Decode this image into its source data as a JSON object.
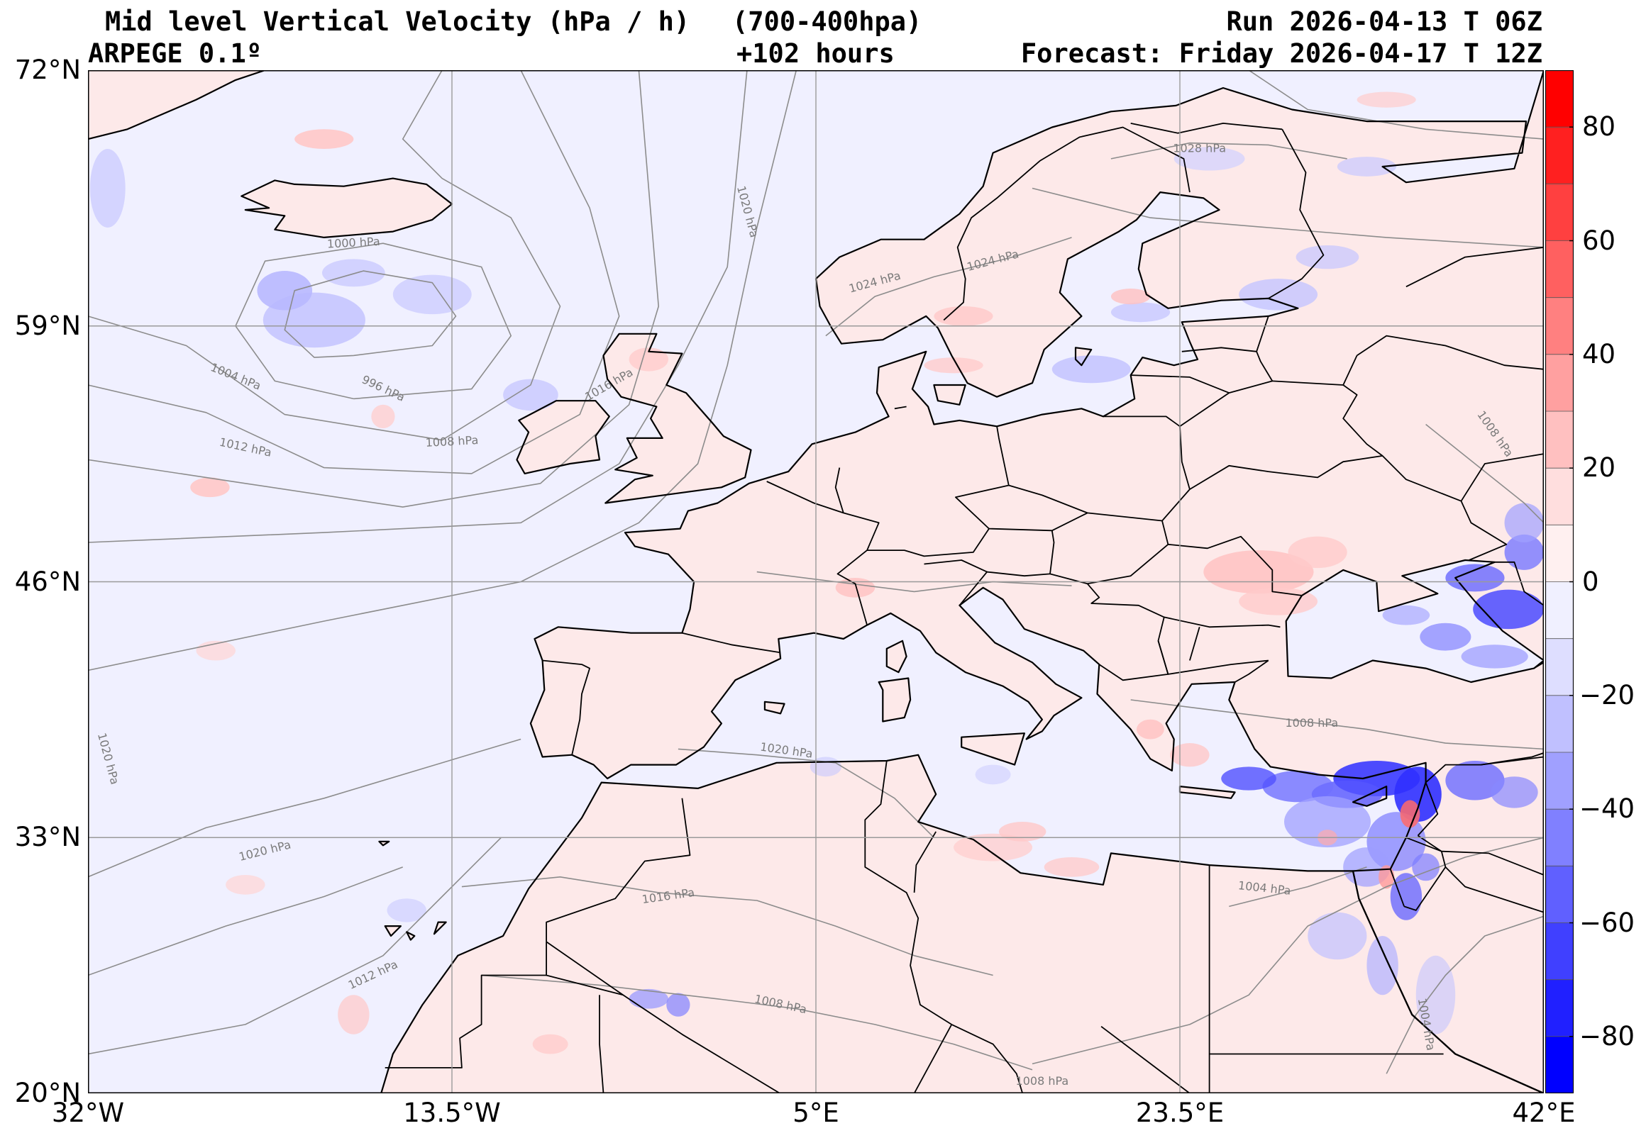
{
  "header": {
    "title": "Mid level Vertical Velocity (hPa / h)",
    "layer": "(700-400hpa)",
    "model": "ARPEGE 0.1º",
    "lead_time": "+102 hours",
    "run": "Run 2026-04-13 T 06Z",
    "forecast": "Forecast: Friday 2026-04-17 T 12Z"
  },
  "map": {
    "extent": {
      "lon_min": -32,
      "lon_max": 42,
      "lat_min": 20,
      "lat_max": 72
    },
    "lon_ticks": [
      {
        "value": -32,
        "label": "32°W"
      },
      {
        "value": -13.5,
        "label": "13.5°W"
      },
      {
        "value": 5,
        "label": "5°E"
      },
      {
        "value": 23.5,
        "label": "23.5°E"
      },
      {
        "value": 42,
        "label": "42°E"
      }
    ],
    "lat_ticks": [
      {
        "value": 72,
        "label": "72°N"
      },
      {
        "value": 59,
        "label": "59°N"
      },
      {
        "value": 46,
        "label": "46°N"
      },
      {
        "value": 33,
        "label": "33°N"
      },
      {
        "value": 20,
        "label": "20°N"
      }
    ],
    "background_color": "#f0f0ff",
    "land_color": "#fde9e9",
    "coast_color": "#000000",
    "isobar_color": "#8c8c8c",
    "isobar_labels": [
      {
        "text": "1000 hPa",
        "lon": -18.5,
        "lat": 63.2,
        "angle": -3
      },
      {
        "text": "1004 hPa",
        "lon": -24.5,
        "lat": 56.4,
        "angle": 22
      },
      {
        "text": "996 hPa",
        "lon": -17.0,
        "lat": 55.8,
        "angle": 25
      },
      {
        "text": "1008 hPa",
        "lon": -13.5,
        "lat": 53.1,
        "angle": -3
      },
      {
        "text": "1012 hPa",
        "lon": -24.0,
        "lat": 52.8,
        "angle": 12
      },
      {
        "text": "1016 hPa",
        "lon": -5.5,
        "lat": 56.0,
        "angle": -30
      },
      {
        "text": "1020 hPa",
        "lon": 1.5,
        "lat": 64.8,
        "angle": 75
      },
      {
        "text": "1024 hPa",
        "lon": 8.0,
        "lat": 61.2,
        "angle": -15
      },
      {
        "text": "1024 hPa",
        "lon": 14.0,
        "lat": 62.3,
        "angle": -15
      },
      {
        "text": "1028 hPa",
        "lon": 24.5,
        "lat": 68.0,
        "angle": 0
      },
      {
        "text": "1008 hPa",
        "lon": 39.5,
        "lat": 53.5,
        "angle": 55
      },
      {
        "text": "1020 hPa",
        "lon": -31.0,
        "lat": 37.0,
        "angle": 75
      },
      {
        "text": "1020 hPa",
        "lon": 3.5,
        "lat": 37.4,
        "angle": 8
      },
      {
        "text": "1008 hPa",
        "lon": 30.2,
        "lat": 38.8,
        "angle": 0
      },
      {
        "text": "1020 hPa",
        "lon": -23.0,
        "lat": 32.3,
        "angle": -14
      },
      {
        "text": "1016 hPa",
        "lon": -2.5,
        "lat": 30.0,
        "angle": -8
      },
      {
        "text": "1004 hPa",
        "lon": 27.8,
        "lat": 30.4,
        "angle": 6
      },
      {
        "text": "1012 hPa",
        "lon": -17.5,
        "lat": 26.0,
        "angle": -25
      },
      {
        "text": "1008 hPa",
        "lon": 3.2,
        "lat": 24.5,
        "angle": 12
      },
      {
        "text": "1004 hPa",
        "lon": 36.0,
        "lat": 23.5,
        "angle": 80
      },
      {
        "text": "1008 hPa",
        "lon": 16.5,
        "lat": 20.6,
        "angle": 0
      }
    ]
  },
  "colorbar": {
    "min": -90,
    "max": 90,
    "ticks": [
      {
        "value": 80,
        "label": "80"
      },
      {
        "value": 60,
        "label": "60"
      },
      {
        "value": 40,
        "label": "40"
      },
      {
        "value": 20,
        "label": "20"
      },
      {
        "value": 0,
        "label": "0"
      },
      {
        "value": -20,
        "label": "−20"
      },
      {
        "value": -40,
        "label": "−40"
      },
      {
        "value": -60,
        "label": "−60"
      },
      {
        "value": -80,
        "label": "−80"
      }
    ],
    "levels": [
      {
        "from": 80,
        "to": 90,
        "color": "#ff0000"
      },
      {
        "from": 70,
        "to": 80,
        "color": "#ff2020"
      },
      {
        "from": 60,
        "to": 70,
        "color": "#ff4040"
      },
      {
        "from": 50,
        "to": 60,
        "color": "#ff6060"
      },
      {
        "from": 40,
        "to": 50,
        "color": "#ff8080"
      },
      {
        "from": 30,
        "to": 40,
        "color": "#ffa0a0"
      },
      {
        "from": 20,
        "to": 30,
        "color": "#ffc0c0"
      },
      {
        "from": 10,
        "to": 20,
        "color": "#ffdede"
      },
      {
        "from": 0,
        "to": 10,
        "color": "#fff0f0"
      },
      {
        "from": -10,
        "to": 0,
        "color": "#f0f0ff"
      },
      {
        "from": -20,
        "to": -10,
        "color": "#dedeff"
      },
      {
        "from": -30,
        "to": -20,
        "color": "#c0c0ff"
      },
      {
        "from": -40,
        "to": -30,
        "color": "#a0a0ff"
      },
      {
        "from": -50,
        "to": -40,
        "color": "#8080ff"
      },
      {
        "from": -60,
        "to": -50,
        "color": "#6060ff"
      },
      {
        "from": -70,
        "to": -60,
        "color": "#4040ff"
      },
      {
        "from": -80,
        "to": -70,
        "color": "#2020ff"
      },
      {
        "from": -90,
        "to": -80,
        "color": "#0000ff"
      }
    ]
  }
}
